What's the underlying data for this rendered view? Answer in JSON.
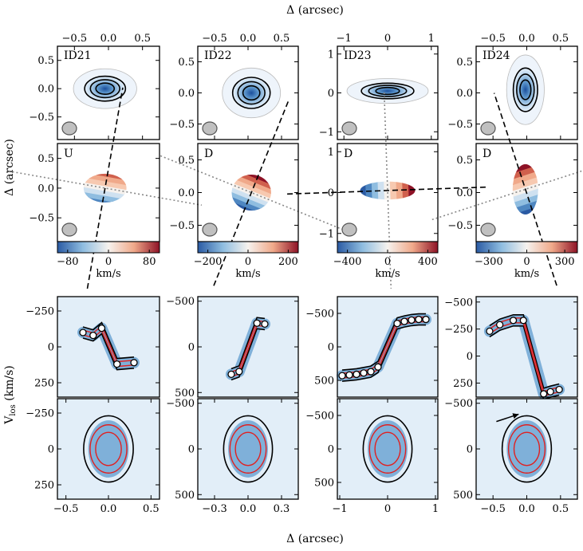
{
  "figure": {
    "top_xlabel": "Δ (arcsec)",
    "left_ylabel_top": "Δ (arcsec)",
    "left_ylabel_bottom": "V_los (km/s)",
    "bottom_xlabel": "Δ (arcsec)"
  },
  "chart_data": [
    {
      "type": "heatmap",
      "group": "moment0",
      "panels": [
        {
          "name": "ID21",
          "xlim": [
            -0.75,
            0.75
          ],
          "ylim": [
            -0.9,
            0.75
          ],
          "xticks": [
            -0.5,
            0.0,
            0.5
          ],
          "xticklabels": [
            "−0.5",
            "0.0",
            "0.5"
          ],
          "yticks": [
            0.5,
            0.0,
            -0.5
          ],
          "yticklabels": [
            "0.5",
            "0.0",
            "−0.5"
          ],
          "center": [
            -0.05,
            0.0
          ],
          "size": [
            0.3,
            0.22
          ]
        },
        {
          "name": "ID22",
          "xlim": [
            -0.75,
            0.75
          ],
          "ylim": [
            -0.75,
            0.75
          ],
          "xticks": [
            -0.5,
            0.0,
            0.5
          ],
          "xticklabels": [
            "−0.5",
            "0.0",
            "0.5"
          ],
          "yticks": [
            0.5,
            0.0,
            -0.5
          ],
          "yticklabels": [
            "0.5",
            "0.0",
            "−0.5"
          ],
          "center": [
            0.05,
            0.0
          ],
          "size": [
            0.28,
            0.25
          ]
        },
        {
          "name": "ID23",
          "xlim": [
            -1.15,
            1.15
          ],
          "ylim": [
            -1.2,
            1.2
          ],
          "xticks": [
            -1,
            0,
            1
          ],
          "xticklabels": [
            "−1",
            "0",
            "1"
          ],
          "yticks": [
            1,
            0,
            -1
          ],
          "yticklabels": [
            "1",
            "0",
            "−1"
          ],
          "center": [
            0.0,
            0.05
          ],
          "size": [
            0.6,
            0.2
          ]
        },
        {
          "name": "ID24",
          "xlim": [
            -0.75,
            0.75
          ],
          "ylim": [
            -0.75,
            0.75
          ],
          "xticks": [
            -0.5,
            0.0,
            0.5
          ],
          "xticklabels": [
            "−0.5",
            "0.0",
            "0.5"
          ],
          "yticks": [
            0.5,
            0.0,
            -0.5
          ],
          "yticklabels": [
            "0.5",
            "0.0",
            "−0.5"
          ],
          "center": [
            -0.02,
            0.05
          ],
          "size": [
            0.18,
            0.35
          ]
        }
      ]
    },
    {
      "type": "heatmap",
      "group": "velocity",
      "colorbar_label": "km/s",
      "panels": [
        {
          "tag": "U",
          "xlim": [
            -0.75,
            0.75
          ],
          "ylim": [
            -0.9,
            0.75
          ],
          "yticks": [
            0.5,
            0.0,
            -0.5
          ],
          "yticklabels": [
            "0.5",
            "0.0",
            "−0.5"
          ],
          "cbar_ticks": [
            -80,
            0,
            80
          ],
          "cbar_ticklabels": [
            "−80",
            "0",
            "80"
          ],
          "cbar_range": [
            -100,
            100
          ],
          "pa_deg": 80
        },
        {
          "tag": "D",
          "xlim": [
            -0.75,
            0.75
          ],
          "ylim": [
            -0.75,
            0.75
          ],
          "yticks": [
            0.5,
            0.0,
            -0.5
          ],
          "yticklabels": [
            "0.5",
            "0.0",
            "−0.5"
          ],
          "cbar_ticks": [
            -200,
            0,
            200
          ],
          "cbar_ticklabels": [
            "−200",
            "0",
            "200"
          ],
          "cbar_range": [
            -250,
            250
          ],
          "pa_deg": 68
        },
        {
          "tag": "D",
          "xlim": [
            -1.15,
            1.15
          ],
          "ylim": [
            -1.2,
            1.2
          ],
          "yticks": [
            1,
            0,
            -1
          ],
          "yticklabels": [
            "1",
            "0",
            "−1"
          ],
          "cbar_ticks": [
            -400,
            0,
            400
          ],
          "cbar_ticklabels": [
            "−400",
            "0",
            "400"
          ],
          "cbar_range": [
            -500,
            500
          ],
          "pa_deg": 2
        },
        {
          "tag": "D",
          "xlim": [
            -0.75,
            0.75
          ],
          "ylim": [
            -0.75,
            0.75
          ],
          "yticks": [
            0.5,
            0.0,
            -0.5
          ],
          "yticklabels": [
            "0.5",
            "0.0",
            "−0.5"
          ],
          "cbar_ticks": [
            -300,
            0,
            300
          ],
          "cbar_ticklabels": [
            "−300",
            "0",
            "300"
          ],
          "cbar_range": [
            -400,
            400
          ],
          "pa_deg": 108
        }
      ]
    },
    {
      "type": "heatmap",
      "group": "pv_major",
      "panels": [
        {
          "xlim": [
            -0.6,
            0.6
          ],
          "ylim": [
            -350,
            350
          ],
          "yticks": [
            -250,
            0,
            250
          ],
          "yticklabels": [
            "−250",
            "0",
            "250"
          ],
          "points_x": [
            -0.3,
            -0.18,
            -0.08,
            0.1,
            0.3
          ],
          "points_y": [
            -100,
            -80,
            -130,
            120,
            110
          ]
        },
        {
          "xlim": [
            -0.45,
            0.45
          ],
          "ylim": [
            -550,
            550
          ],
          "yticks": [
            -500,
            0,
            500
          ],
          "yticklabels": [
            "−500",
            "0",
            "500"
          ],
          "points_x": [
            -0.15,
            -0.08,
            0.08,
            0.15
          ],
          "points_y": [
            300,
            270,
            -260,
            -250
          ]
        },
        {
          "xlim": [
            -1.05,
            1.05
          ],
          "ylim": [
            -750,
            750
          ],
          "yticks": [
            500,
            0,
            -500
          ],
          "yticklabels": [
            "500",
            "0",
            "−500"
          ],
          "points_x": [
            -0.95,
            -0.8,
            -0.65,
            -0.5,
            -0.35,
            -0.2,
            0.2,
            0.35,
            0.5,
            0.65,
            0.8
          ],
          "points_y": [
            430,
            420,
            410,
            390,
            370,
            300,
            -350,
            -380,
            -400,
            -410,
            -410
          ]
        },
        {
          "xlim": [
            -0.75,
            0.75
          ],
          "ylim": [
            -550,
            380
          ],
          "yticks": [
            250,
            0,
            -250,
            -500
          ],
          "yticklabels": [
            "250",
            "0",
            "−250",
            "−500"
          ],
          "points_x": [
            -0.55,
            -0.4,
            -0.2,
            -0.05,
            0.25,
            0.35,
            0.48
          ],
          "points_y": [
            -230,
            -290,
            -330,
            -330,
            350,
            330,
            310
          ]
        }
      ]
    },
    {
      "type": "heatmap",
      "group": "pv_minor",
      "panels": [
        {
          "xlim": [
            -0.6,
            0.6
          ],
          "ylim": [
            -350,
            350
          ],
          "xticks": [
            -0.5,
            0.0,
            0.5
          ],
          "xticklabels": [
            "−0.5",
            "0.0",
            "0.5"
          ],
          "yticks": [
            -250,
            0,
            250
          ],
          "yticklabels": [
            "−250",
            "0",
            "250"
          ]
        },
        {
          "xlim": [
            -0.45,
            0.45
          ],
          "ylim": [
            -550,
            550
          ],
          "xticks": [
            -0.3,
            0.0,
            0.3
          ],
          "xticklabels": [
            "−0.3",
            "0.0",
            "0.3"
          ],
          "yticks": [
            -500,
            0,
            500
          ],
          "yticklabels": [
            "−500",
            "0",
            "500"
          ]
        },
        {
          "xlim": [
            -1.05,
            1.05
          ],
          "ylim": [
            -750,
            750
          ],
          "xticks": [
            -1,
            0,
            1
          ],
          "xticklabels": [
            "−1",
            "0",
            "1"
          ],
          "yticks": [
            500,
            0,
            -500
          ],
          "yticklabels": [
            "500",
            "0",
            "−500"
          ]
        },
        {
          "xlim": [
            -0.75,
            0.75
          ],
          "ylim": [
            -550,
            550
          ],
          "xticks": [
            -0.5,
            0.0,
            0.5
          ],
          "xticklabels": [
            "−0.5",
            "0.0",
            "0.5"
          ],
          "yticks": [
            500,
            0,
            -500
          ],
          "yticklabels": [
            "500",
            "0",
            "−500"
          ],
          "arrow_from": [
            -0.45,
            -300
          ],
          "arrow_to": [
            -0.12,
            -380
          ]
        }
      ]
    }
  ]
}
